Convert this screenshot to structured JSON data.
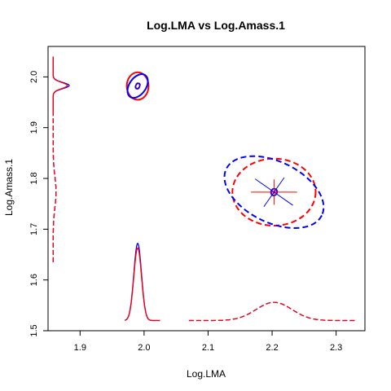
{
  "chart_data": {
    "type": "scatter",
    "title": "Log.LMA vs Log.Amass.1",
    "xlabel": "Log.LMA",
    "ylabel": "Log.Amass.1",
    "xlim": [
      1.85,
      2.345
    ],
    "ylim": [
      1.5,
      2.06
    ],
    "xticks": [
      "1.9",
      "2.0",
      "2.1",
      "2.2",
      "2.3"
    ],
    "yticks": [
      "1.5",
      "1.6",
      "1.7",
      "1.8",
      "1.9",
      "2.0"
    ],
    "grid": false,
    "legend": "none",
    "colors": {
      "red": "#ff0000",
      "blue": "#0000ff",
      "axis": "#000000"
    },
    "groups": [
      {
        "center": [
          1.99,
          1.982
        ],
        "ellipses": [
          {
            "color": "red",
            "dash": false,
            "rx": 0.017,
            "ry": 0.027,
            "rot": 0,
            "level": "outer"
          },
          {
            "color": "blue",
            "dash": false,
            "rx": 0.013,
            "ry": 0.026,
            "rot": 35,
            "level": "outer"
          },
          {
            "color": "red",
            "dash": false,
            "rx": 0.003,
            "ry": 0.006,
            "rot": 0,
            "level": "inner"
          },
          {
            "color": "blue",
            "dash": false,
            "rx": 0.003,
            "ry": 0.006,
            "rot": 35,
            "level": "inner"
          }
        ],
        "crosshairs": []
      },
      {
        "center": [
          2.203,
          1.773
        ],
        "ellipses": [
          {
            "color": "red",
            "dash": true,
            "rx": 0.065,
            "ry": 0.066,
            "rot": 0,
            "level": "outer"
          },
          {
            "color": "blue",
            "dash": true,
            "rx": 0.083,
            "ry": 0.06,
            "rot": 26,
            "level": "outer"
          },
          {
            "color": "red",
            "dash": false,
            "rx": 0.004,
            "ry": 0.007,
            "rot": 0,
            "level": "inner"
          },
          {
            "color": "blue",
            "dash": false,
            "rx": 0.005,
            "ry": 0.007,
            "rot": 26,
            "level": "inner"
          }
        ],
        "crosshairs": [
          {
            "color": "red",
            "dx": 0.036,
            "dy": 0.025,
            "rot": 0
          },
          {
            "color": "blue",
            "dx": 0.036,
            "dy": 0.035,
            "rot": 35
          }
        ]
      }
    ],
    "x_densities": [
      {
        "color": "blue",
        "dash": false,
        "center": 1.99,
        "sd": 0.006,
        "peak": 0.152,
        "range": [
          1.97,
          2.025
        ]
      },
      {
        "color": "red",
        "dash": false,
        "center": 1.99,
        "sd": 0.006,
        "peak": 0.143,
        "range": [
          1.97,
          2.025
        ]
      },
      {
        "color": "blue",
        "dash": true,
        "center": 2.203,
        "sd": 0.028,
        "peak": 0.036,
        "range": [
          2.07,
          2.33
        ]
      },
      {
        "color": "red",
        "dash": true,
        "center": 2.203,
        "sd": 0.028,
        "peak": 0.036,
        "range": [
          2.07,
          2.33
        ]
      }
    ],
    "x_density_baseline": 1.52,
    "y_densities": [
      {
        "color": "blue",
        "dash": false,
        "center": 1.983,
        "sd": 0.006,
        "peak": 0.025,
        "range": [
          1.93,
          2.04
        ]
      },
      {
        "color": "red",
        "dash": false,
        "center": 1.983,
        "sd": 0.006,
        "peak": 0.022,
        "range": [
          1.93,
          2.04
        ]
      },
      {
        "color": "blue",
        "dash": true,
        "center": 1.773,
        "sd": 0.03,
        "peak": 0.0045,
        "range": [
          1.635,
          1.93
        ]
      },
      {
        "color": "red",
        "dash": true,
        "center": 1.773,
        "sd": 0.03,
        "peak": 0.0045,
        "range": [
          1.635,
          1.93
        ]
      }
    ],
    "y_density_baseline": 1.858
  }
}
